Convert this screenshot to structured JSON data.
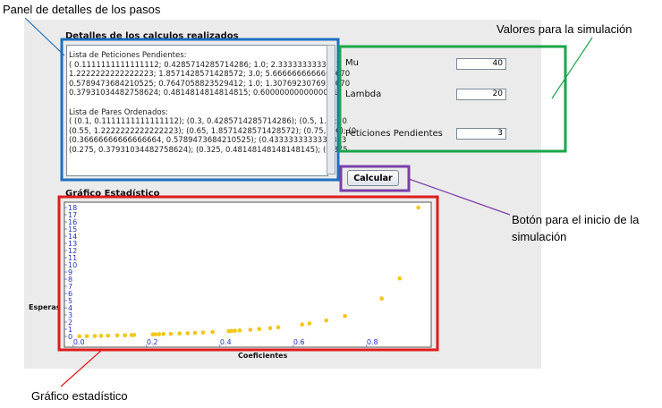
{
  "annotations": {
    "details_panel": "Panel de detalles de los pasos",
    "values": "Valores para la simulación",
    "button": "Botón para el inicio de la simulación",
    "chart": "Gráfico estadístico"
  },
  "details": {
    "title": "Detalles de los calculos realizados",
    "pending_title": "Lista de Peticiones Pendientes:",
    "pending_lines": [
      "( 0.1111111111111112; 0.4285714285714286; 1.0; 2.3333333333333",
      "1.2222222222222223; 1.8571428571428572; 3.0; 5.6666666666666670",
      "0.5789473684210525; 0.7647058823529412; 1.0; 1.3076923076923070",
      "0.37931034482758624; 0.4814814814814815; 0.6000000000000001;"
    ],
    "pairs_title": "Lista de Pares Ordenados:",
    "pairs_lines": [
      "( (0.1, 0.1111111111111112); (0.3, 0.4285714285714286); (0.5, 1.0); (0",
      "(0.55, 1.2222222222222223); (0.65, 1.8571428571428572); (0.75, 3.0); (0",
      "(0.36666666666666664, 0.5789473684210525); (0.4333333333333333",
      "(0.275, 0.37931034482758624); (0.325, 0.48148148148148145); (0.375"
    ]
  },
  "inputs": [
    {
      "label": "Mu",
      "value": "40"
    },
    {
      "label": "Lambda",
      "value": "20"
    },
    {
      "label": "Peticiones Pendientes",
      "value": "3"
    }
  ],
  "button": "Calcular",
  "chart_data": {
    "type": "scatter",
    "title": "Gráfico Estadístico",
    "x_label": "Coeficientes",
    "y_label": "Esperas",
    "color": "#f5c518",
    "x": [
      0.017,
      0.037,
      0.059,
      0.076,
      0.095,
      0.12,
      0.141,
      0.159,
      0.166,
      0.217,
      0.224,
      0.234,
      0.246,
      0.266,
      0.29,
      0.312,
      0.332,
      0.354,
      0.38,
      0.424,
      0.432,
      0.441,
      0.454,
      0.483,
      0.507,
      0.537,
      0.559,
      0.624,
      0.644,
      0.69,
      0.741,
      0.841,
      0.89,
      0.941
    ],
    "values": [
      0.02,
      0.04,
      0.06,
      0.08,
      0.1,
      0.14,
      0.16,
      0.19,
      0.2,
      0.28,
      0.29,
      0.31,
      0.33,
      0.36,
      0.41,
      0.45,
      0.5,
      0.55,
      0.61,
      0.74,
      0.76,
      0.79,
      0.83,
      0.93,
      1.03,
      1.16,
      1.27,
      1.66,
      1.81,
      2.23,
      2.86,
      5.3,
      8.1,
      18
    ],
    "xlim": [
      -0.024,
      0.976
    ],
    "ylim": [
      -1.5,
      18.75
    ],
    "xticks": [
      {
        "value": 0,
        "label": "0.0"
      },
      0.2,
      0.4,
      0.6,
      0.8
    ],
    "yticks": [
      0,
      1,
      2,
      3,
      4,
      5,
      6,
      7,
      8,
      9,
      10,
      11,
      12,
      13,
      14,
      15,
      16,
      17,
      18
    ]
  }
}
